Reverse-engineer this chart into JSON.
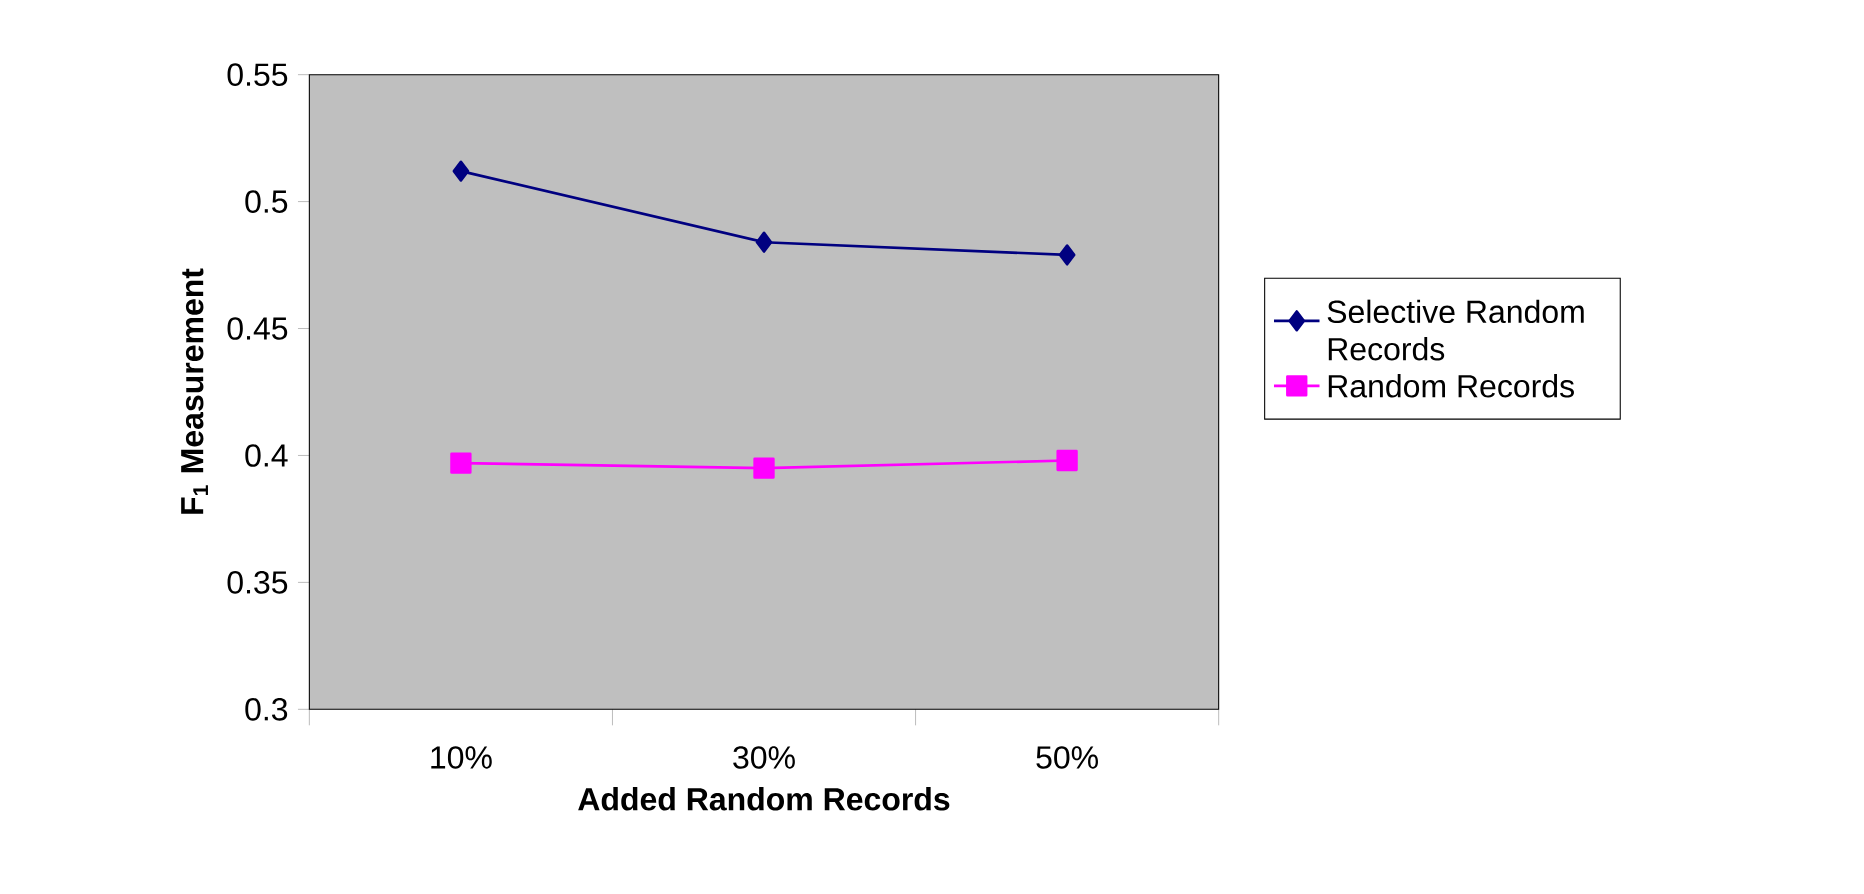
{
  "chart_data": {
    "type": "line",
    "xlabel": "Added Random Records",
    "ylabel": "F$_{1}$ Measurement",
    "categories": [
      "10%",
      "30%",
      "50%"
    ],
    "series": [
      {
        "name": "Selective Random Records",
        "color": "#000080",
        "marker": "diamond",
        "values": [
          0.512,
          0.484,
          0.479
        ]
      },
      {
        "name": "Random Records",
        "color": "#ff00ff",
        "marker": "square",
        "values": [
          0.397,
          0.395,
          0.398
        ]
      }
    ],
    "ylim": [
      0.3,
      0.55
    ],
    "yticks": [
      0.3,
      0.35,
      0.4,
      0.45,
      0.5,
      0.55
    ],
    "legend": "right"
  }
}
